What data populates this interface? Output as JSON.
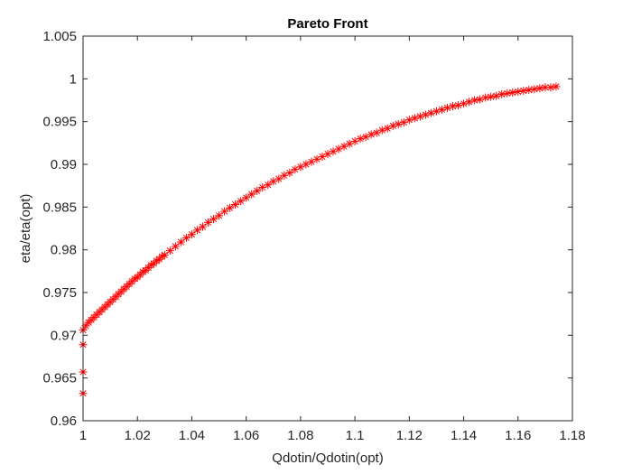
{
  "chart_data": {
    "type": "scatter",
    "title": "Pareto Front",
    "xlabel": "Qdotin/Qdotin(opt)",
    "ylabel": "eta/eta(opt)",
    "xlim": [
      1,
      1.18
    ],
    "ylim": [
      0.96,
      1.005
    ],
    "x_ticks": [
      1,
      1.02,
      1.04,
      1.06,
      1.08,
      1.1,
      1.12,
      1.14,
      1.16,
      1.18
    ],
    "x_tick_labels": [
      "1",
      "1.02",
      "1.04",
      "1.06",
      "1.08",
      "1.1",
      "1.12",
      "1.14",
      "1.16",
      "1.18"
    ],
    "y_ticks": [
      0.96,
      0.965,
      0.97,
      0.975,
      0.98,
      0.985,
      0.99,
      0.995,
      1,
      1.005
    ],
    "y_tick_labels": [
      "0.96",
      "0.965",
      "0.97",
      "0.975",
      "0.98",
      "0.985",
      "0.99",
      "0.995",
      "1",
      "1.005"
    ],
    "marker": "*",
    "marker_color": "#ff0000",
    "axis_color": "#262626",
    "grid": false,
    "series": [
      {
        "name": "Pareto points",
        "x": [
          1.0,
          1.0,
          1.0,
          1.0,
          1.001,
          1.002,
          1.003,
          1.004,
          1.005,
          1.006,
          1.007,
          1.008,
          1.009,
          1.01,
          1.011,
          1.012,
          1.013,
          1.014,
          1.015,
          1.016,
          1.017,
          1.018,
          1.019,
          1.02,
          1.021,
          1.022,
          1.023,
          1.024,
          1.025,
          1.026,
          1.027,
          1.028,
          1.029,
          1.03,
          1.032,
          1.034,
          1.036,
          1.038,
          1.04,
          1.042,
          1.044,
          1.046,
          1.048,
          1.05,
          1.052,
          1.054,
          1.056,
          1.058,
          1.06,
          1.062,
          1.064,
          1.066,
          1.068,
          1.07,
          1.072,
          1.074,
          1.076,
          1.078,
          1.08,
          1.082,
          1.084,
          1.086,
          1.088,
          1.09,
          1.092,
          1.094,
          1.096,
          1.098,
          1.1,
          1.102,
          1.104,
          1.106,
          1.108,
          1.11,
          1.112,
          1.114,
          1.116,
          1.118,
          1.12,
          1.122,
          1.124,
          1.126,
          1.128,
          1.13,
          1.132,
          1.134,
          1.136,
          1.138,
          1.14,
          1.142,
          1.144,
          1.146,
          1.148,
          1.15,
          1.152,
          1.154,
          1.156,
          1.158,
          1.16,
          1.162,
          1.164,
          1.166,
          1.168,
          1.17,
          1.172,
          1.174
        ],
        "y": [
          0.9632,
          0.9657,
          0.9689,
          0.9706,
          0.9711,
          0.9715,
          0.9718,
          0.9721,
          0.9724,
          0.9727,
          0.973,
          0.9733,
          0.9736,
          0.9739,
          0.9742,
          0.9745,
          0.9748,
          0.9751,
          0.9754,
          0.9757,
          0.976,
          0.9763,
          0.9766,
          0.9768,
          0.9771,
          0.9774,
          0.9776,
          0.9779,
          0.9782,
          0.9784,
          0.9787,
          0.9789,
          0.9792,
          0.9794,
          0.9799,
          0.9804,
          0.9809,
          0.9814,
          0.9818,
          0.9823,
          0.9827,
          0.9832,
          0.9836,
          0.984,
          0.9845,
          0.9849,
          0.9853,
          0.9857,
          0.9861,
          0.9865,
          0.9869,
          0.9873,
          0.9876,
          0.988,
          0.9883,
          0.9887,
          0.989,
          0.9894,
          0.9897,
          0.99,
          0.9903,
          0.9906,
          0.9909,
          0.9912,
          0.9915,
          0.9918,
          0.9921,
          0.9924,
          0.9927,
          0.993,
          0.9932,
          0.9935,
          0.9937,
          0.994,
          0.9942,
          0.9945,
          0.9947,
          0.9949,
          0.9952,
          0.9954,
          0.9956,
          0.9958,
          0.996,
          0.9962,
          0.9964,
          0.9966,
          0.9968,
          0.9969,
          0.9971,
          0.9973,
          0.9975,
          0.9976,
          0.9978,
          0.9979,
          0.998,
          0.9982,
          0.9983,
          0.9984,
          0.9985,
          0.9986,
          0.9987,
          0.9988,
          0.9989,
          0.999,
          0.999,
          0.9991
        ]
      }
    ]
  }
}
